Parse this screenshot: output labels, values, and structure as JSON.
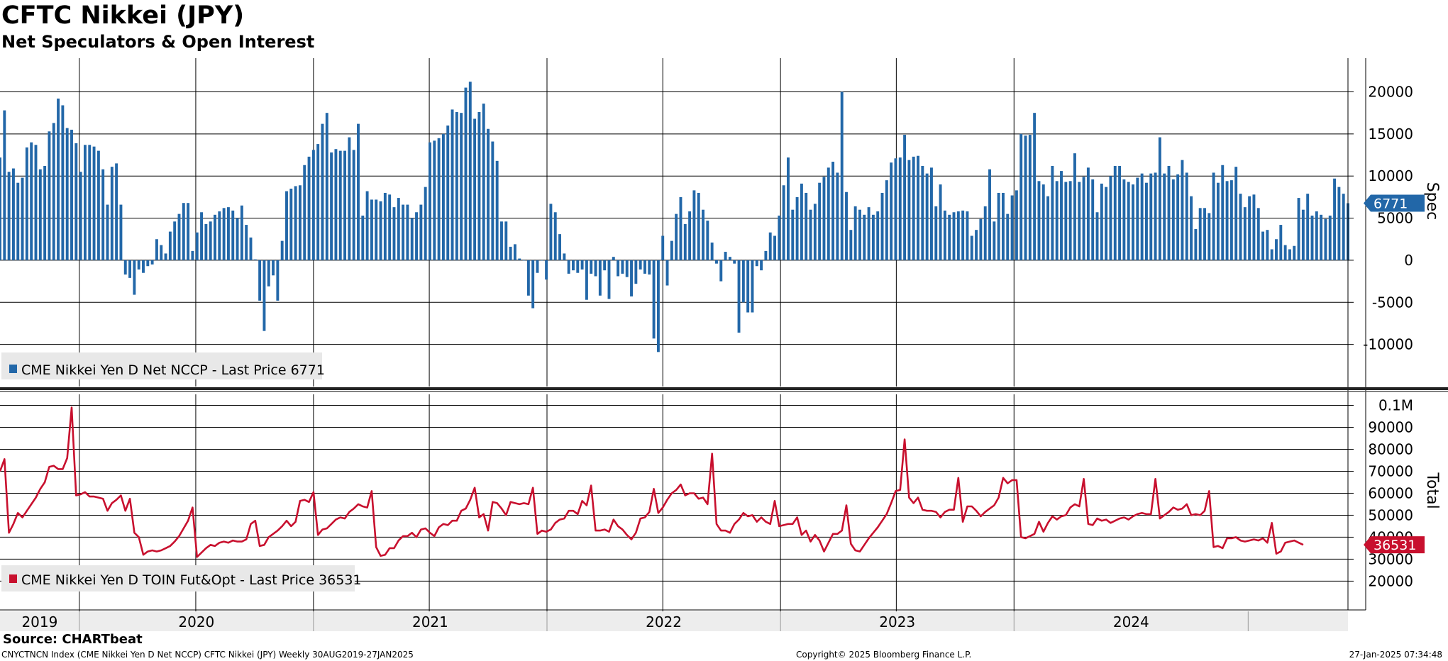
{
  "header": {
    "title": "CFTC Nikkei (JPY)",
    "subtitle": "Net Speculators & Open Interest"
  },
  "footer": {
    "source": "Source: CHARTbeat",
    "description": "CNYCTNCN Index (CME Nikkei Yen D Net NCCP) CFTC Nikkei (JPY)  Weekly 30AUG2019-27JAN2025",
    "copyright": "Copyright© 2025 Bloomberg Finance L.P.",
    "timestamp": "27-Jan-2025 07:34:48"
  },
  "colors": {
    "spec": "#2267a8",
    "total": "#c8102e",
    "grid": "#000000"
  },
  "chart_data": [
    {
      "type": "bar",
      "ylabel": "Spec",
      "legend": "CME Nikkei Yen D Net NCCP  - Last Price 6771",
      "legend_position": "bottom-left",
      "last_value": 6771,
      "last_label": "6771",
      "grid": true,
      "ylim": [
        -15000,
        24000
      ],
      "yticks": [
        20000,
        15000,
        10000,
        5000,
        0,
        -5000,
        -10000
      ],
      "ytick_labels": [
        "20000",
        "15000",
        "10000",
        "5000",
        "0",
        "-5000",
        "-10000"
      ],
      "x_start": "2019-08-30",
      "interval_days": 7,
      "values": [
        12200,
        17800,
        10500,
        10900,
        9200,
        9800,
        13400,
        14000,
        13700,
        10800,
        11200,
        15300,
        16300,
        19200,
        18400,
        15700,
        15500,
        13900,
        10500,
        13700,
        13700,
        13500,
        13000,
        10800,
        6600,
        11100,
        11500,
        6600,
        -1700,
        -2100,
        -4100,
        -1100,
        -1500,
        -700,
        -500,
        2500,
        1800,
        800,
        3400,
        4600,
        5500,
        6800,
        6800,
        1100,
        3300,
        5700,
        4300,
        4600,
        5400,
        5800,
        6200,
        6300,
        5900,
        5000,
        6500,
        4200,
        2700,
        100,
        -4800,
        -8400,
        -3100,
        -1800,
        -4800,
        2300,
        8200,
        8500,
        8800,
        8900,
        11300,
        12300,
        13100,
        13800,
        16200,
        17500,
        12800,
        13200,
        13000,
        13000,
        14600,
        13100,
        16200,
        5300,
        8200,
        7200,
        7200,
        7000,
        8000,
        7800,
        6300,
        7400,
        6600,
        6600,
        5000,
        5700,
        6600,
        8700,
        14000,
        14200,
        14500,
        15000,
        16000,
        17900,
        17600,
        17500,
        20500,
        21200,
        16800,
        17600,
        18600,
        15600,
        14100,
        11800,
        4600,
        4600,
        1600,
        1900,
        200,
        0,
        -4200,
        -5700,
        -1500,
        0,
        -2300,
        6700,
        5700,
        3100,
        800,
        -1600,
        -1200,
        -1500,
        -1100,
        -4700,
        -1600,
        -1900,
        -4200,
        -1200,
        -4600,
        400,
        -1900,
        -1600,
        -2000,
        -4300,
        -2800,
        -1100,
        -1600,
        -1700,
        -9300,
        -10900,
        2900,
        -3000,
        2300,
        5500,
        7500,
        4300,
        5800,
        8300,
        8000,
        6000,
        4700,
        2100,
        -400,
        -2500,
        1000,
        400,
        -400,
        -8600,
        -5000,
        -6200,
        -6200,
        -700,
        -1200,
        1100,
        3300,
        2900,
        5300,
        8900,
        12200,
        6000,
        7500,
        9100,
        8000,
        6000,
        6700,
        9200,
        9900,
        11000,
        11700,
        10400,
        20000,
        8100,
        3600,
        6400,
        6000,
        5400,
        6300,
        5400,
        5800,
        8000,
        9500,
        11600,
        12100,
        12200,
        14900,
        11900,
        12300,
        12400,
        11200,
        10300,
        11000,
        6400,
        9000,
        5900,
        5400,
        5700,
        5800,
        5900,
        5800,
        2900,
        3600,
        4900,
        6400,
        10800,
        4600,
        8000,
        8000,
        5500,
        7700,
        8300,
        15000,
        14800,
        14900,
        17500,
        9400,
        9000,
        7600,
        11200,
        9400,
        10600,
        9300,
        9400,
        12700,
        9300,
        9900,
        11000,
        9600,
        5700,
        9100,
        8700,
        10000,
        11200,
        11200,
        9600,
        9300,
        9000,
        9800,
        10300,
        9200,
        10300,
        10400,
        14600,
        10300,
        11200,
        9600,
        10200,
        11900,
        10400,
        7600,
        3700,
        6200,
        6200,
        5600,
        10400,
        9200,
        11300,
        9400,
        9500,
        11100,
        7900,
        6300,
        7600,
        7800,
        6200,
        3400,
        3600,
        1300,
        2500,
        4200,
        1800,
        1300,
        1700,
        7400,
        6000,
        7900,
        5300,
        5800,
        5400,
        4900,
        5300,
        9700,
        8700,
        7900,
        6771
      ]
    },
    {
      "type": "line",
      "ylabel": "Total",
      "legend": "CME Nikkei Yen D TOIN Fut&Opt  - Last Price 36531",
      "legend_position": "bottom-left",
      "last_value": 36531,
      "last_label": "36531",
      "grid": true,
      "ylim": [
        14000,
        105000
      ],
      "yticks": [
        100000,
        90000,
        80000,
        70000,
        60000,
        50000,
        40000,
        30000,
        20000
      ],
      "ytick_labels": [
        "0.1M",
        "90000",
        "80000",
        "70000",
        "60000",
        "50000",
        "40000",
        "30000",
        "20000"
      ],
      "x_start": "2019-08-30",
      "interval_days": 7,
      "values": [
        70000,
        75500,
        42000,
        46000,
        51000,
        49000,
        52000,
        55000,
        58000,
        62000,
        65000,
        72000,
        72500,
        71000,
        71000,
        76000,
        99000,
        59000,
        59500,
        60500,
        58500,
        58500,
        58000,
        57500,
        52000,
        55500,
        57000,
        59000,
        52000,
        57500,
        42000,
        40000,
        32000,
        33500,
        34000,
        33500,
        34000,
        35000,
        36000,
        38000,
        40500,
        44000,
        47500,
        53500,
        31000,
        33000,
        35000,
        36500,
        36000,
        37500,
        38000,
        37500,
        38500,
        38000,
        38000,
        39000,
        46000,
        47500,
        36000,
        36500,
        40000,
        41500,
        43000,
        45000,
        47500,
        45000,
        47000,
        56500,
        57000,
        56000,
        60500,
        41000,
        43500,
        44000,
        46000,
        48000,
        49000,
        48500,
        51500,
        53000,
        55000,
        54000,
        53500,
        61000,
        35500,
        31500,
        32000,
        35000,
        35000,
        38500,
        40500,
        40500,
        42000,
        40000,
        43500,
        44000,
        42000,
        40500,
        44500,
        46000,
        45500,
        47500,
        47500,
        52000,
        53000,
        57000,
        62500,
        49000,
        50500,
        43000,
        56000,
        55500,
        53000,
        50000,
        56000,
        55500,
        55000,
        55500,
        55000,
        62500,
        41500,
        43000,
        42500,
        43500,
        46500,
        48000,
        48500,
        52000,
        52000,
        50500,
        56500,
        54500,
        63500,
        43000,
        43000,
        43500,
        42500,
        48000,
        45000,
        43500,
        41000,
        39000,
        42000,
        48500,
        49000,
        51500,
        62000,
        51000,
        53500,
        57000,
        60000,
        61500,
        64000,
        59000,
        60000,
        60000,
        57500,
        58000,
        55000,
        78000,
        46000,
        43000,
        43000,
        42000,
        46000,
        48000,
        51000,
        49500,
        50000,
        47000,
        49000,
        47000,
        46000,
        56500,
        45000,
        45500,
        46000,
        46000,
        49000,
        41000,
        43000,
        38000,
        41000,
        38500,
        33500,
        37500,
        41500,
        41500,
        43000,
        54500,
        37000,
        34000,
        33500,
        36500,
        39500,
        42000,
        44500,
        47500,
        50500,
        55500,
        61000,
        61500,
        84500,
        58000,
        55500,
        58000,
        52500,
        52000,
        52000,
        51500,
        49000,
        51500,
        52500,
        52500,
        67000,
        47000,
        54000,
        54000,
        52000,
        49500,
        51500,
        53000,
        54500,
        58000,
        67000,
        64500,
        66000,
        66000,
        40000,
        39500,
        40500,
        41500,
        47000,
        42500,
        46500,
        49500,
        48000,
        49500,
        50000,
        53500,
        55000,
        54000,
        66500,
        46000,
        45500,
        48500,
        47500,
        48000,
        46500,
        47500,
        48500,
        49000,
        48000,
        49500,
        50500,
        51000,
        50500,
        50500,
        66500,
        48500,
        50000,
        51500,
        53500,
        52500,
        53000,
        55000,
        50000,
        50500,
        50000,
        52000,
        61000,
        35500,
        36000,
        35000,
        39500,
        39500,
        40000,
        38500,
        38000,
        38500,
        39000,
        38500,
        39500,
        37500,
        46500,
        32500,
        33500,
        37500,
        38000,
        38500,
        37500,
        36531
      ]
    }
  ],
  "x_axis": {
    "labels": [
      "2019",
      "2020",
      "2021",
      "2022",
      "2023",
      "2024"
    ],
    "dates": [
      "2019-01-01",
      "2020-01-01",
      "2021-01-01",
      "2022-01-01",
      "2023-01-01",
      "2024-01-01",
      "2025-01-01"
    ]
  }
}
